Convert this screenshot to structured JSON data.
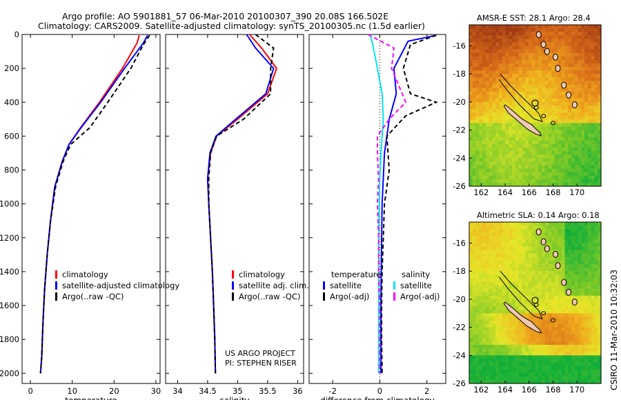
{
  "header": {
    "line1": "Argo profile: AO 5901881_57 06-Mar-2010 20100307_390 20.08S 166.502E",
    "line2": "Climatology: CARS2009. Satellite-adjusted climatology: synTS_20100305.nc (1.5d earlier)"
  },
  "stamp": "CSIRO 11-Mar-2010 10:32:03",
  "credit": {
    "line1": "US ARGO PROJECT",
    "line2": "PI: STEPHEN RISER"
  },
  "colors": {
    "climatology": "#ff0000",
    "satellite": "#0000ff",
    "argo": "#000000",
    "diff_temperature_satellite": "#0000ff",
    "diff_salinity_satellite": "#00e5ee",
    "diff_salinity_argo": "#ff00ff"
  },
  "chart_data": [
    {
      "type": "line",
      "xlabel": "temperature",
      "ylabel": "",
      "xlim": [
        -2,
        31
      ],
      "ylim": [
        2060,
        0
      ],
      "xticks": [
        "0",
        "10",
        "20",
        "30"
      ],
      "xtick_values": [
        0,
        10,
        20,
        30
      ],
      "yticks": [
        "0",
        "200",
        "400",
        "600",
        "800",
        "1000",
        "1200",
        "1400",
        "1600",
        "1800",
        "2000"
      ],
      "ytick_values": [
        0,
        200,
        400,
        600,
        800,
        1000,
        1200,
        1400,
        1600,
        1800,
        2000
      ],
      "legend": [
        "climatology",
        "satellite-adjusted climatology",
        "Argo(..raw -QC)"
      ],
      "legend_location": "lower-center",
      "series": [
        {
          "name": "climatology",
          "x": [
            26.0,
            25.5,
            22.0,
            16.5,
            12.0,
            9.2,
            7.6,
            5.8,
            4.8,
            4.0,
            3.4,
            3.0,
            2.7,
            2.4
          ],
          "y": [
            5,
            50,
            200,
            400,
            550,
            650,
            750,
            900,
            1100,
            1300,
            1500,
            1700,
            1900,
            2000
          ]
        },
        {
          "name": "satellite-adjusted climatology",
          "x": [
            28.0,
            27.0,
            22.5,
            16.8,
            12.1,
            9.2,
            7.6,
            5.8,
            4.8,
            4.0,
            3.4,
            3.0,
            2.7,
            2.4
          ],
          "y": [
            5,
            50,
            200,
            400,
            550,
            650,
            750,
            900,
            1100,
            1300,
            1500,
            1700,
            1900,
            2000
          ]
        },
        {
          "name": "Argo(..raw -QC)",
          "x": [
            28.5,
            27.0,
            24.0,
            18.5,
            14.2,
            9.6,
            7.8,
            6.0,
            4.8,
            4.0,
            3.4,
            3.0,
            2.7,
            2.4
          ],
          "y": [
            5,
            60,
            200,
            400,
            550,
            650,
            750,
            900,
            1100,
            1300,
            1500,
            1700,
            1900,
            2000
          ]
        }
      ]
    },
    {
      "type": "line",
      "xlabel": "salinity",
      "xlim": [
        33.8,
        36.1
      ],
      "ylim": [
        2060,
        0
      ],
      "xticks": [
        "34",
        "34.5",
        "35",
        "35.5",
        "36"
      ],
      "xtick_values": [
        34,
        34.5,
        35,
        35.5,
        36
      ],
      "legend": [
        "climatology",
        "satellite adj. clim.",
        "Argo(..raw -QC)"
      ],
      "legend_location": "lower-right",
      "series": [
        {
          "name": "climatology",
          "x": [
            35.2,
            35.4,
            35.65,
            35.5,
            35.0,
            34.65,
            34.55,
            34.5,
            34.52,
            34.55,
            34.58,
            34.6,
            34.62,
            34.63
          ],
          "y": [
            0,
            80,
            200,
            350,
            500,
            600,
            700,
            850,
            1000,
            1200,
            1400,
            1600,
            1800,
            2000
          ]
        },
        {
          "name": "satellite adj. clim.",
          "x": [
            35.15,
            35.3,
            35.6,
            35.47,
            34.97,
            34.64,
            34.54,
            34.5,
            34.52,
            34.55,
            34.58,
            34.6,
            34.62,
            34.63
          ],
          "y": [
            0,
            80,
            200,
            350,
            500,
            600,
            700,
            850,
            1000,
            1200,
            1400,
            1600,
            1800,
            2000
          ]
        },
        {
          "name": "Argo(..raw -QC)",
          "x": [
            35.3,
            35.6,
            35.55,
            35.55,
            35.1,
            34.65,
            34.55,
            34.52,
            34.52,
            34.55,
            34.58,
            34.6,
            34.62,
            34.63
          ],
          "y": [
            0,
            80,
            200,
            350,
            500,
            600,
            700,
            850,
            1000,
            1200,
            1400,
            1600,
            1800,
            2000
          ]
        }
      ]
    },
    {
      "type": "line",
      "xlabel": "difference from climatology",
      "xlim": [
        -3,
        2.8
      ],
      "ylim": [
        2060,
        0
      ],
      "xticks": [
        "-2",
        "0",
        "2"
      ],
      "xtick_values": [
        -2,
        0,
        2
      ],
      "legend_groups": [
        {
          "title": "temperature",
          "items": [
            "satellite",
            "Argo(-adj)"
          ]
        },
        {
          "title": "salinity",
          "items": [
            "satellite",
            "Argo(-adj)"
          ]
        }
      ],
      "legend_location": "lower-center",
      "series": [
        {
          "name": "satellite",
          "group": "temperature",
          "x": [
            2.4,
            1.2,
            0.6,
            0.7,
            0.4,
            0.3,
            0.2,
            0.15,
            0.1,
            0.08,
            0.06,
            0.05,
            0.05,
            0.05
          ],
          "y": [
            5,
            40,
            200,
            350,
            500,
            600,
            700,
            850,
            1000,
            1200,
            1400,
            1600,
            1800,
            2000
          ]
        },
        {
          "name": "Argo(-adj)",
          "group": "temperature",
          "x": [
            2.4,
            1.3,
            1.0,
            1.3,
            2.4,
            1.1,
            0.3,
            0.4,
            0.2,
            0.15,
            0.1,
            0.08,
            0.08,
            0.1
          ],
          "y": [
            5,
            60,
            200,
            350,
            400,
            480,
            600,
            800,
            1000,
            1200,
            1400,
            1600,
            1800,
            2000
          ]
        },
        {
          "name": "satellite",
          "group": "salinity",
          "x": [
            -0.4,
            -0.3,
            -0.1,
            0.1,
            0.15,
            0.1,
            0.05,
            0.0,
            -0.02,
            -0.05,
            -0.05,
            -0.05,
            -0.05,
            -0.05
          ],
          "y": [
            0,
            60,
            200,
            350,
            500,
            600,
            700,
            850,
            1000,
            1200,
            1400,
            1600,
            1800,
            2000
          ]
        },
        {
          "name": "Argo(-adj)",
          "group": "salinity",
          "x": [
            -0.5,
            0.6,
            0.5,
            1.1,
            0.4,
            -0.1,
            -0.1,
            -0.05,
            -0.1,
            -0.05,
            -0.05,
            0.0,
            0.0,
            0.0
          ],
          "y": [
            0,
            80,
            200,
            400,
            500,
            600,
            700,
            850,
            1000,
            1200,
            1400,
            1600,
            1800,
            2000
          ]
        }
      ]
    },
    {
      "type": "heatmap",
      "title": "AMSR-E SST: 28.1 Argo: 28.4",
      "xlim": [
        161,
        172
      ],
      "ylim": [
        -26,
        -14.5
      ],
      "xticks": [
        "162",
        "164",
        "166",
        "168",
        "170"
      ],
      "xtick_values": [
        162,
        164,
        166,
        168,
        170
      ],
      "yticks": [
        "-16",
        "-18",
        "-20",
        "-22",
        "-24",
        "-26"
      ],
      "ytick_values": [
        -16,
        -18,
        -20,
        -22,
        -24,
        -26
      ]
    },
    {
      "type": "heatmap",
      "title": "Altimetric SLA: 0.14 Argo: 0.18",
      "xlim": [
        161,
        172
      ],
      "ylim": [
        -26,
        -14.5
      ],
      "xticks": [
        "162",
        "164",
        "166",
        "168",
        "170"
      ],
      "xtick_values": [
        162,
        164,
        166,
        168,
        170
      ],
      "yticks": [
        "-16",
        "-18",
        "-20",
        "-22",
        "-24",
        "-26"
      ],
      "ytick_values": [
        -16,
        -18,
        -20,
        -22,
        -24,
        -26
      ]
    }
  ]
}
